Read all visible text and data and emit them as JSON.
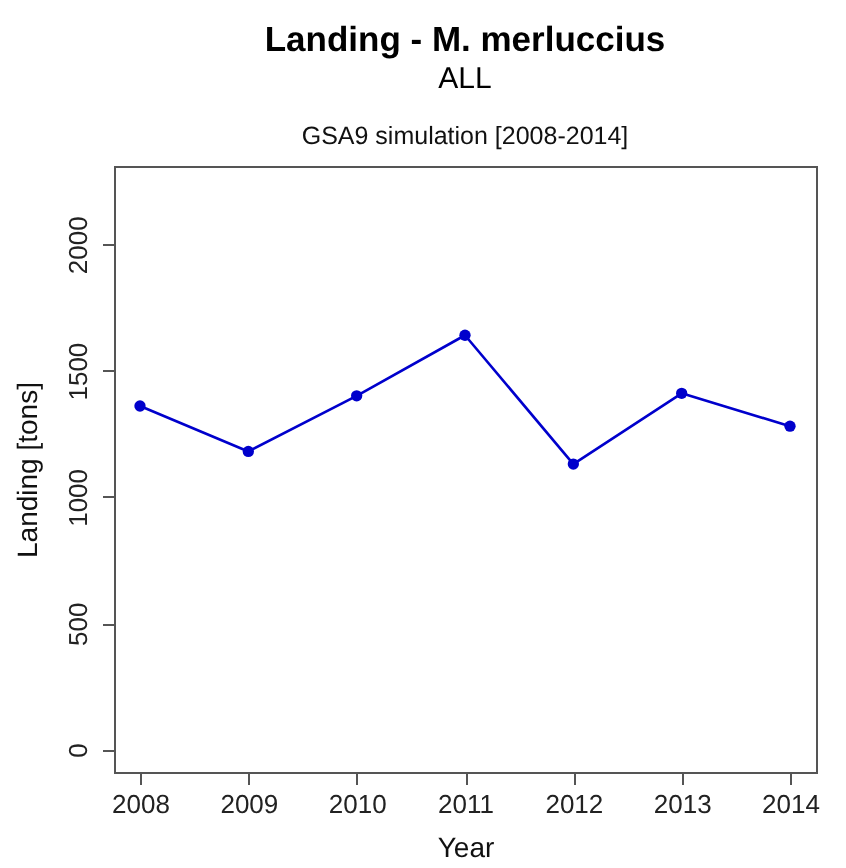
{
  "chart_data": {
    "type": "line",
    "title": "Landing - M. merluccius",
    "subtitle": "ALL",
    "annotations": [
      "GSA9 simulation [2008-2014]"
    ],
    "xlabel": "Year",
    "ylabel": "Landing [tons]",
    "x": [
      2008,
      2009,
      2010,
      2011,
      2012,
      2013,
      2014
    ],
    "series": [
      {
        "color": "#0000cc",
        "values": [
          1360,
          1180,
          1400,
          1640,
          1130,
          1410,
          1280
        ]
      }
    ],
    "xlim": [
      2007.76,
      2014.24
    ],
    "ylim": [
      -89,
      2310
    ],
    "xticks": [
      2008,
      2009,
      2010,
      2011,
      2012,
      2013,
      2014
    ],
    "yticks": [
      0,
      500,
      1000,
      1500,
      2000
    ],
    "marker": "circle",
    "line_style": "solid"
  }
}
